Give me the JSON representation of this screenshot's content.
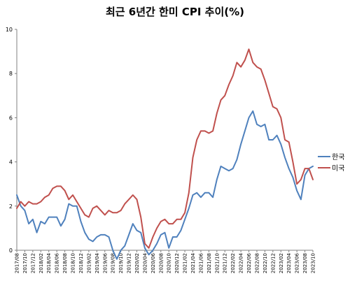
{
  "chart_data": {
    "type": "line",
    "title": "최근 6년간 한미 CPI 추이(%)",
    "xlabel": "",
    "ylabel": "",
    "ylim": [
      0,
      10
    ],
    "yticks": [
      0,
      2,
      4,
      6,
      8,
      10
    ],
    "grid": "none",
    "legend_position": "right",
    "x": [
      "2017/08",
      "2017/09",
      "2017/10",
      "2017/11",
      "2017/12",
      "2018/01",
      "2018/02",
      "2018/03",
      "2018/04",
      "2018/05",
      "2018/06",
      "2018/07",
      "2018/08",
      "2018/09",
      "2018/10",
      "2018/11",
      "2018/12",
      "2019/01",
      "2019/02",
      "2019/03",
      "2019/04",
      "2019/05",
      "2019/06",
      "2019/07",
      "2019/08",
      "2019/09",
      "2019/10",
      "2019/11",
      "2019/12",
      "2020/01",
      "2020/02",
      "2020/03",
      "2020/04",
      "2020/05",
      "2020/06",
      "2020/07",
      "2020/08",
      "2020/09",
      "2020/10",
      "2020/11",
      "2020/12",
      "2021/01",
      "2021/02",
      "2021/03",
      "2021/04",
      "2021/05",
      "2021/06",
      "2021/07",
      "2021/08",
      "2021/09",
      "2021/10",
      "2021/11",
      "2021/12",
      "2022/01",
      "2022/02",
      "2022/03",
      "2022/04",
      "2022/05",
      "2022/06",
      "2022/07",
      "2022/08",
      "2022/09",
      "2022/10",
      "2022/11",
      "2022/12",
      "2023/01",
      "2023/02",
      "2023/03",
      "2023/04",
      "2023/05",
      "2023/06",
      "2023/07",
      "2023/08",
      "2023/09",
      "2023/10"
    ],
    "x_tick_labels": [
      "2017/08",
      "2017/10",
      "2017/12",
      "2018/02",
      "2018/04",
      "2018/06",
      "2018/08",
      "2018/10",
      "2018/12",
      "2019/02",
      "2019/04",
      "2019/06",
      "2019/08",
      "2019/10",
      "2019/12",
      "2020/02",
      "2020/04",
      "2020/06",
      "2020/08",
      "2020/10",
      "2020/12",
      "2021/02",
      "2021/04",
      "2021/06",
      "2021/08",
      "2021/10",
      "2021/12",
      "2022/02",
      "2022/04",
      "2022/06",
      "2022/08",
      "2022/10",
      "2022/12",
      "2023/02",
      "2023/04",
      "2023/06",
      "2023/08",
      "2023/10"
    ],
    "series": [
      {
        "name": "한국",
        "color": "#4f81bd",
        "values": [
          2.5,
          2.0,
          1.8,
          1.2,
          1.4,
          0.8,
          1.3,
          1.2,
          1.5,
          1.5,
          1.5,
          1.1,
          1.4,
          2.1,
          2.0,
          2.0,
          1.3,
          0.8,
          0.5,
          0.4,
          0.6,
          0.7,
          0.7,
          0.6,
          0.0,
          -0.4,
          0.0,
          0.2,
          0.7,
          1.2,
          0.9,
          0.8,
          0.1,
          -0.2,
          0.0,
          0.3,
          0.7,
          0.8,
          0.1,
          0.6,
          0.6,
          0.9,
          1.4,
          1.9,
          2.5,
          2.6,
          2.4,
          2.6,
          2.6,
          2.4,
          3.2,
          3.8,
          3.7,
          3.6,
          3.7,
          4.1,
          4.8,
          5.4,
          6.0,
          6.3,
          5.7,
          5.6,
          5.7,
          5.0,
          5.0,
          5.2,
          4.8,
          4.2,
          3.7,
          3.3,
          2.7,
          2.3,
          3.4,
          3.7,
          3.8
        ]
      },
      {
        "name": "미국",
        "color": "#c0504d",
        "values": [
          1.9,
          2.2,
          2.0,
          2.2,
          2.1,
          2.1,
          2.2,
          2.4,
          2.5,
          2.8,
          2.9,
          2.9,
          2.7,
          2.3,
          2.5,
          2.2,
          1.9,
          1.6,
          1.5,
          1.9,
          2.0,
          1.8,
          1.6,
          1.8,
          1.7,
          1.7,
          1.8,
          2.1,
          2.3,
          2.5,
          2.3,
          1.5,
          0.3,
          0.1,
          0.6,
          1.0,
          1.3,
          1.4,
          1.2,
          1.2,
          1.4,
          1.4,
          1.7,
          2.6,
          4.2,
          5.0,
          5.4,
          5.4,
          5.3,
          5.4,
          6.2,
          6.8,
          7.0,
          7.5,
          7.9,
          8.5,
          8.3,
          8.6,
          9.1,
          8.5,
          8.3,
          8.2,
          7.7,
          7.1,
          6.5,
          6.4,
          6.0,
          5.0,
          4.9,
          4.0,
          3.0,
          3.2,
          3.7,
          3.7,
          3.2
        ]
      }
    ]
  }
}
